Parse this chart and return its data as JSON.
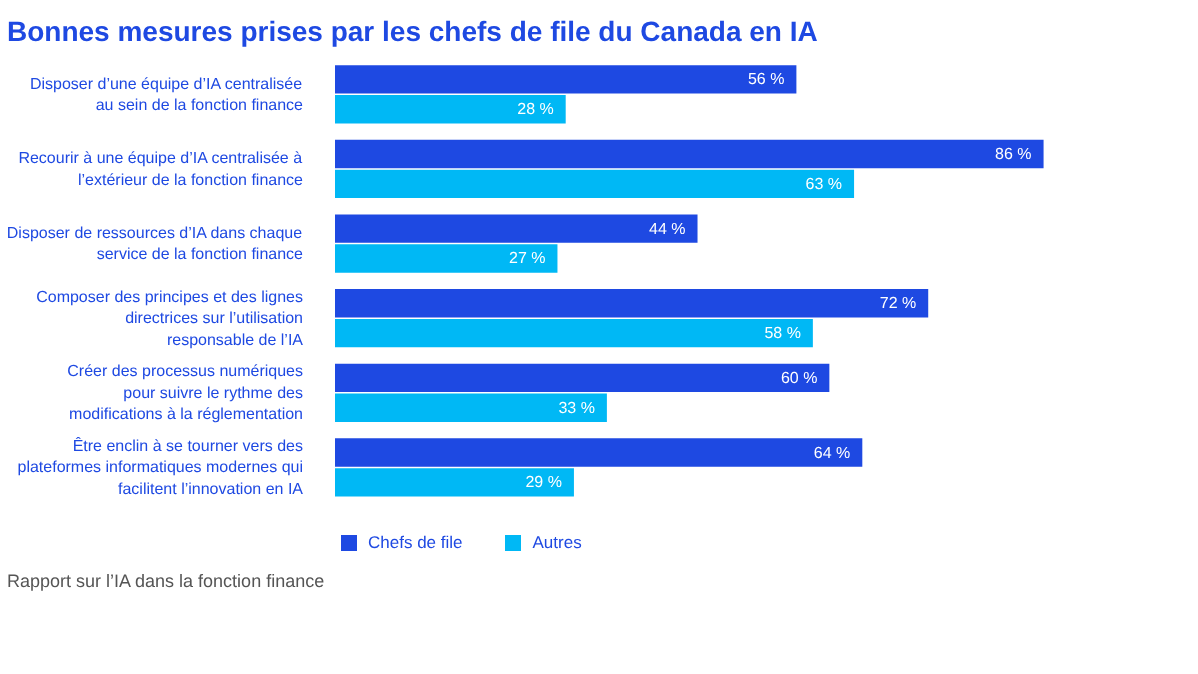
{
  "chart_data": {
    "type": "bar",
    "orientation": "horizontal",
    "title": "Bonnes mesures prises par les chefs de file du Canada en IA",
    "categories": [
      "Disposer d’une équipe d’IA centralisée\nau sein de la fonction finance",
      "Recourir à une équipe d’IA centralisée à\nl’extérieur de la fonction finance",
      "Disposer de ressources d’IA dans chaque\nservice de la fonction finance",
      "Composer des principes et des lignes\ndirectrices sur l’utilisation\nresponsable de l’IA",
      "Créer des processus numériques\npour suivre le rythme des\nmodifications à la réglementation",
      "Être enclin à se tourner vers des\nplateformes informatiques modernes qui\nfacilitent l’innovation en IA"
    ],
    "series": [
      {
        "name": "Chefs de file",
        "color": "#1e49e2",
        "values": [
          56,
          86,
          44,
          72,
          60,
          64
        ],
        "value_labels": [
          "56 %",
          "86 %",
          "44 %",
          "72 %",
          "60 %",
          "64 %"
        ]
      },
      {
        "name": "Autres",
        "color": "#00b8f5",
        "values": [
          28,
          63,
          27,
          58,
          33,
          29
        ],
        "value_labels": [
          "28 %",
          "63 %",
          "27 %",
          "58 %",
          "33 %",
          "29 %"
        ]
      }
    ],
    "legend": "bottom",
    "grid": false,
    "annotations": [
      "Rapport sur l’IA dans la fonction finance"
    ]
  }
}
